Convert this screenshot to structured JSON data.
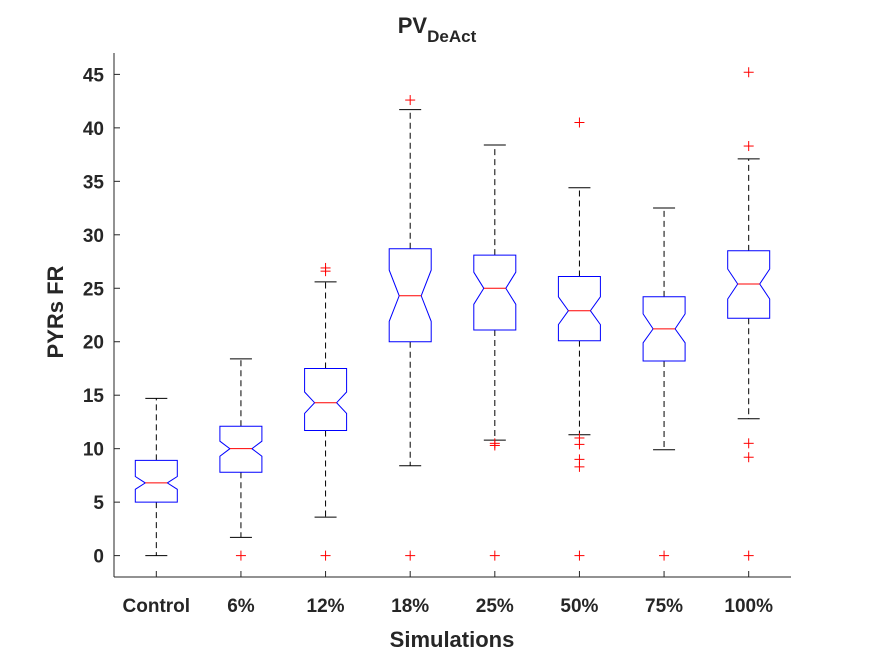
{
  "chart_data": {
    "type": "boxplot",
    "title": "PV",
    "title_subscript": "DeAct",
    "xlabel": "Simulations",
    "ylabel": "PYRs FR",
    "ylim": [
      -2,
      47
    ],
    "yticks": [
      0,
      5,
      10,
      15,
      20,
      25,
      30,
      35,
      40,
      45
    ],
    "grid": false,
    "notched": true,
    "colors": {
      "box": "#0000ff",
      "median": "#ff0000",
      "whisker": "#000000",
      "outlier": "#ff0000",
      "axis": "#262626"
    },
    "categories": [
      "Control",
      "6%",
      "12%",
      "18%",
      "25%",
      "50%",
      "75%",
      "100%"
    ],
    "boxes": [
      {
        "label": "Control",
        "q1": 5.0,
        "median": 6.8,
        "q3": 8.9,
        "notch_low": 6.2,
        "notch_high": 7.4,
        "whisker_low": 0.0,
        "whisker_high": 14.7,
        "outliers": []
      },
      {
        "label": "6%",
        "q1": 7.8,
        "median": 10.0,
        "q3": 12.1,
        "notch_low": 9.3,
        "notch_high": 10.7,
        "whisker_low": 1.7,
        "whisker_high": 18.4,
        "outliers": [
          0.0
        ]
      },
      {
        "label": "12%",
        "q1": 11.7,
        "median": 14.3,
        "q3": 17.5,
        "notch_low": 13.3,
        "notch_high": 15.3,
        "whisker_low": 3.6,
        "whisker_high": 25.6,
        "outliers": [
          0.0,
          26.6,
          26.9
        ]
      },
      {
        "label": "18%",
        "q1": 20.0,
        "median": 24.3,
        "q3": 28.7,
        "notch_low": 21.9,
        "notch_high": 26.7,
        "whisker_low": 8.4,
        "whisker_high": 41.7,
        "outliers": [
          0.0,
          42.6
        ]
      },
      {
        "label": "25%",
        "q1": 21.1,
        "median": 25.0,
        "q3": 28.1,
        "notch_low": 23.5,
        "notch_high": 26.5,
        "whisker_low": 10.8,
        "whisker_high": 38.4,
        "outliers": [
          0.0,
          10.3,
          10.5
        ]
      },
      {
        "label": "50%",
        "q1": 20.1,
        "median": 22.9,
        "q3": 26.1,
        "notch_low": 21.6,
        "notch_high": 24.2,
        "whisker_low": 11.3,
        "whisker_high": 34.4,
        "outliers": [
          0.0,
          8.3,
          9.0,
          10.4,
          11.0,
          40.5
        ]
      },
      {
        "label": "75%",
        "q1": 18.2,
        "median": 21.2,
        "q3": 24.2,
        "notch_low": 19.9,
        "notch_high": 22.6,
        "whisker_low": 9.9,
        "whisker_high": 32.5,
        "outliers": [
          0.0
        ]
      },
      {
        "label": "100%",
        "q1": 22.2,
        "median": 25.4,
        "q3": 28.5,
        "notch_low": 24.0,
        "notch_high": 26.8,
        "whisker_low": 12.8,
        "whisker_high": 37.1,
        "outliers": [
          0.0,
          9.2,
          10.5,
          38.3,
          45.2
        ]
      }
    ]
  }
}
